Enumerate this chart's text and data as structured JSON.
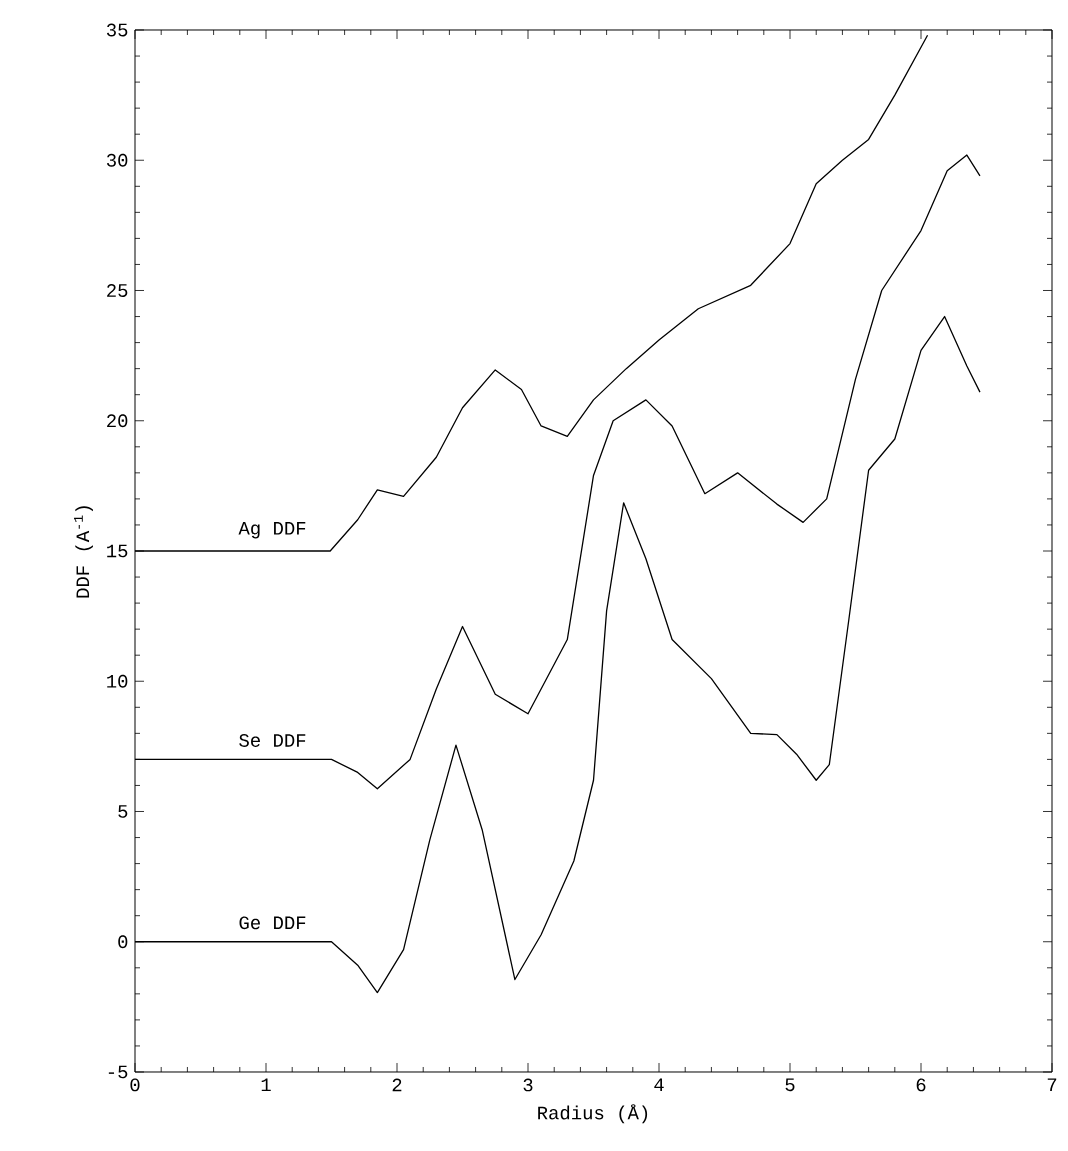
{
  "chart_data": {
    "type": "line",
    "xlabel": "Radius (Å)",
    "ylabel": "DDF (A$^{-1}$)",
    "xlim": [
      0,
      7
    ],
    "ylim": [
      -5,
      35
    ],
    "xticks": [
      0,
      1,
      2,
      3,
      4,
      5,
      6,
      7
    ],
    "yticks": [
      -5,
      0,
      5,
      10,
      15,
      20,
      25,
      30,
      35
    ],
    "grid": false,
    "legend": false,
    "marker": "none",
    "line_style": "solid",
    "series": [
      {
        "name": "Ag DDF",
        "color": "#000000",
        "x": [
          0,
          1.49,
          1.7,
          1.85,
          2.05,
          2.3,
          2.5,
          2.75,
          2.95,
          3.1,
          3.3,
          3.5,
          3.75,
          4.0,
          4.3,
          4.7,
          5.0,
          5.2,
          5.4,
          5.6,
          5.8,
          6.05
        ],
        "values": [
          15,
          15,
          16.2,
          17.35,
          17.1,
          18.6,
          20.5,
          21.95,
          21.2,
          19.8,
          19.4,
          20.8,
          22.0,
          23.1,
          24.3,
          25.2,
          26.8,
          29.1,
          30.0,
          30.8,
          32.5,
          34.8
        ]
      },
      {
        "name": "Se DDF",
        "color": "#000000",
        "x": [
          0,
          1.5,
          1.7,
          1.85,
          2.1,
          2.3,
          2.5,
          2.75,
          3.0,
          3.3,
          3.5,
          3.65,
          3.9,
          4.1,
          4.35,
          4.6,
          4.9,
          5.1,
          5.28,
          5.5,
          5.7,
          6.0,
          6.2,
          6.35,
          6.45
        ],
        "values": [
          7,
          7.0,
          6.5,
          5.87,
          7.0,
          9.7,
          12.1,
          9.5,
          8.75,
          11.6,
          17.9,
          20.0,
          20.8,
          19.8,
          17.2,
          18.0,
          16.8,
          16.1,
          17.0,
          21.6,
          25.0,
          27.3,
          29.6,
          30.2,
          29.4
        ]
      },
      {
        "name": "Ge DDF",
        "color": "#000000",
        "x": [
          0,
          1.5,
          1.7,
          1.85,
          2.05,
          2.25,
          2.45,
          2.65,
          2.9,
          3.1,
          3.35,
          3.5,
          3.6,
          3.73,
          3.9,
          4.1,
          4.4,
          4.7,
          4.9,
          5.05,
          5.2,
          5.3,
          5.45,
          5.6,
          5.8,
          6.0,
          6.18,
          6.35,
          6.45
        ],
        "values": [
          0,
          0.0,
          -0.9,
          -1.95,
          -0.3,
          3.9,
          7.55,
          4.3,
          -1.45,
          0.27,
          3.1,
          6.2,
          12.7,
          16.85,
          14.7,
          11.6,
          10.1,
          8.0,
          7.95,
          7.2,
          6.2,
          6.8,
          12.4,
          18.1,
          19.3,
          22.7,
          24.0,
          22.1,
          21.1
        ]
      }
    ]
  }
}
